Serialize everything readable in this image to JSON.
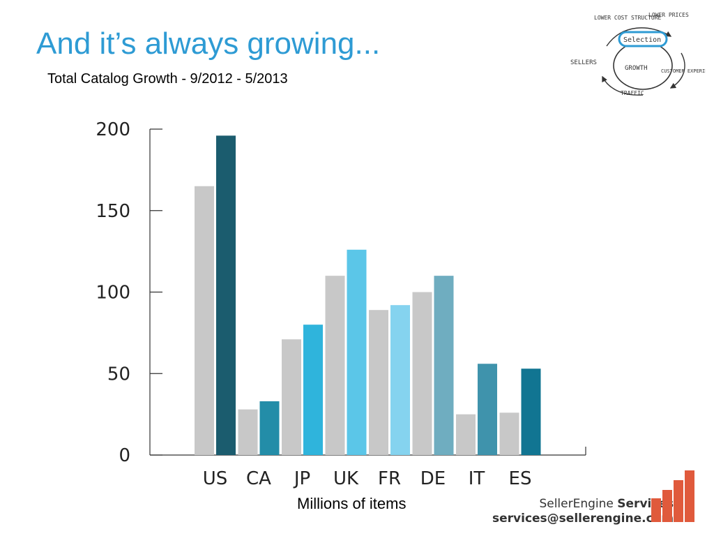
{
  "title": "And it’s always growing...",
  "subtitle": "Total Catalog Growth - 9/2012 - 5/2013",
  "unit_label": "Millions of items",
  "colors": {
    "title": "#2e9bd4",
    "baseline_bar": "#c8c8c8",
    "axis": "#333333",
    "logo_bars": "#e05a3c"
  },
  "chart_data": {
    "type": "bar",
    "categories": [
      "US",
      "CA",
      "JP",
      "UK",
      "FR",
      "DE",
      "IT",
      "ES"
    ],
    "series": [
      {
        "name": "",
        "values": [
          165,
          28,
          71,
          110,
          89,
          100,
          25,
          26
        ],
        "color": "#c8c8c8"
      },
      {
        "name": "",
        "values": [
          196,
          33,
          80,
          126,
          92,
          110,
          56,
          53
        ],
        "colors": [
          "#1b5c6e",
          "#238da8",
          "#2fb4dc",
          "#5bc6e8",
          "#85d3ef",
          "#6fadc0",
          "#3f93ac",
          "#117592"
        ]
      }
    ],
    "yticks": [
      0,
      50,
      100,
      150,
      200
    ],
    "ylim": [
      0,
      200
    ],
    "xlabel": "Millions of items",
    "ylabel": "",
    "grid": false
  },
  "flywheel": {
    "labels": [
      "LOWER COST STRUCTURE",
      "LOWER PRICES",
      "Selection",
      "SELLERS",
      "GROWTH",
      "CUSTOMER EXPERIENCE",
      "TRAFFIC"
    ]
  },
  "logo": {
    "brand": "SellerEngine",
    "brand_suffix": "Services",
    "email": "services@sellerengine.com"
  }
}
